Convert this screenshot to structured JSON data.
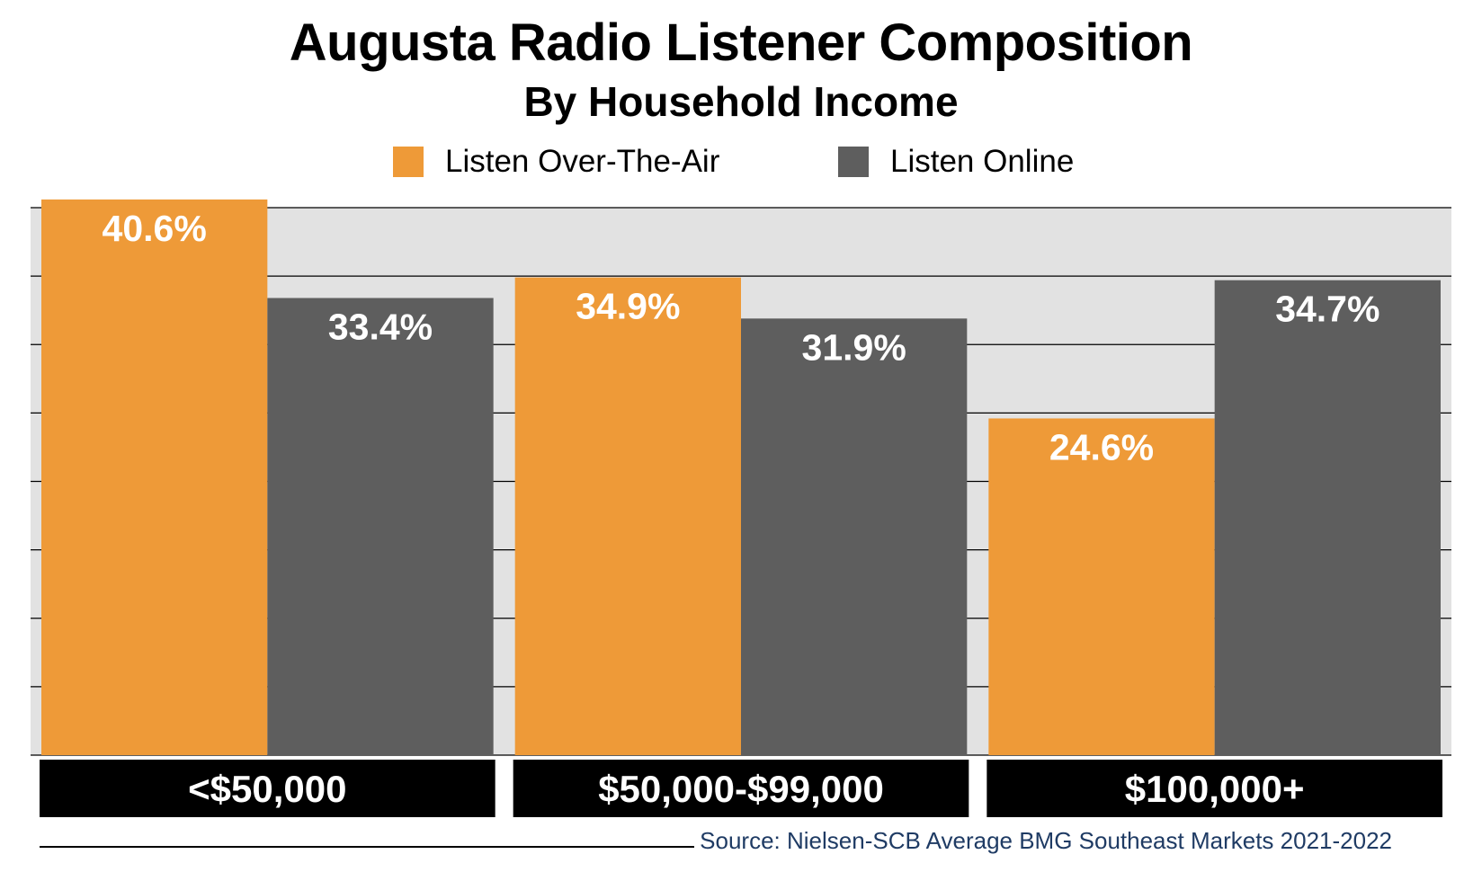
{
  "chart_data": {
    "type": "bar",
    "title": "Augusta Radio Listener Composition",
    "subtitle": "By Household Income",
    "categories": [
      "<$50,000",
      "$50,000-$99,000",
      "$100,000+"
    ],
    "series": [
      {
        "name": "Listen Over-The-Air",
        "color": "#ee9a38",
        "values": [
          40.6,
          34.9,
          24.6
        ],
        "labels": [
          "40.6%",
          "34.9%",
          "24.6%"
        ]
      },
      {
        "name": "Listen Online",
        "color": "#5e5e5e",
        "values": [
          33.4,
          31.9,
          34.7
        ],
        "labels": [
          "33.4%",
          "31.9%",
          "34.7%"
        ]
      }
    ],
    "ylim": [
      0,
      40
    ],
    "grid": true,
    "legend_position": "top",
    "plot_background": "#e2e2e2",
    "category_label_background": "#000000",
    "source": "Source: Nielsen-SCB Average BMG Southeast Markets 2021-2022"
  }
}
